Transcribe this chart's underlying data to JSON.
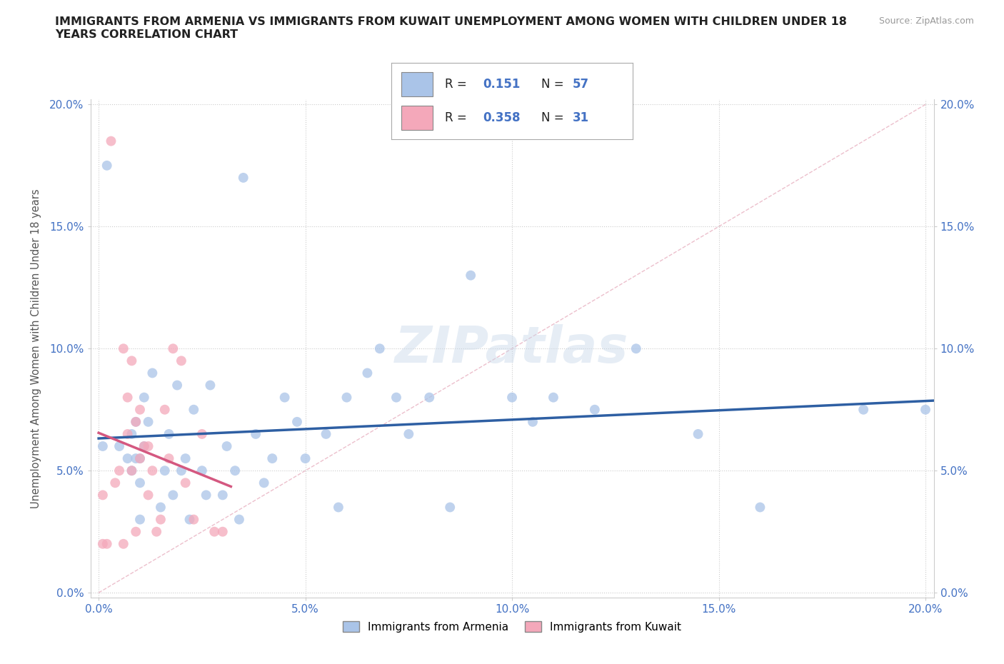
{
  "title": "IMMIGRANTS FROM ARMENIA VS IMMIGRANTS FROM KUWAIT UNEMPLOYMENT AMONG WOMEN WITH CHILDREN UNDER 18\nYEARS CORRELATION CHART",
  "source": "Source: ZipAtlas.com",
  "ylabel": "Unemployment Among Women with Children Under 18 years",
  "xlabel": "",
  "xlim": [
    -0.002,
    0.202
  ],
  "ylim": [
    -0.002,
    0.202
  ],
  "yticks": [
    0.0,
    0.05,
    0.1,
    0.15,
    0.2
  ],
  "xticks": [
    0.0,
    0.05,
    0.1,
    0.15,
    0.2
  ],
  "xtick_labels": [
    "0.0%",
    "5.0%",
    "10.0%",
    "15.0%",
    "20.0%"
  ],
  "ytick_labels": [
    "0.0%",
    "5.0%",
    "10.0%",
    "15.0%",
    "20.0%"
  ],
  "armenia_color": "#aac4e8",
  "kuwait_color": "#f4a8ba",
  "armenia_R": 0.151,
  "armenia_N": 57,
  "kuwait_R": 0.358,
  "kuwait_N": 31,
  "regression_armenia_color": "#2e5fa3",
  "regression_kuwait_color": "#d45880",
  "diagonal_color": "#d0a0b0",
  "watermark": "ZIPatlas",
  "legend_bottom_armenia": "Immigrants from Armenia",
  "legend_bottom_kuwait": "Immigrants from Kuwait",
  "armenia_x": [
    0.001,
    0.002,
    0.005,
    0.007,
    0.008,
    0.008,
    0.009,
    0.009,
    0.01,
    0.01,
    0.01,
    0.011,
    0.011,
    0.012,
    0.013,
    0.015,
    0.016,
    0.017,
    0.018,
    0.019,
    0.02,
    0.021,
    0.022,
    0.023,
    0.025,
    0.026,
    0.027,
    0.03,
    0.031,
    0.033,
    0.034,
    0.035,
    0.038,
    0.04,
    0.042,
    0.045,
    0.048,
    0.05,
    0.055,
    0.058,
    0.06,
    0.065,
    0.068,
    0.072,
    0.075,
    0.08,
    0.085,
    0.09,
    0.1,
    0.105,
    0.11,
    0.12,
    0.13,
    0.145,
    0.16,
    0.185,
    0.2
  ],
  "armenia_y": [
    0.06,
    0.175,
    0.06,
    0.055,
    0.05,
    0.065,
    0.055,
    0.07,
    0.03,
    0.045,
    0.055,
    0.06,
    0.08,
    0.07,
    0.09,
    0.035,
    0.05,
    0.065,
    0.04,
    0.085,
    0.05,
    0.055,
    0.03,
    0.075,
    0.05,
    0.04,
    0.085,
    0.04,
    0.06,
    0.05,
    0.03,
    0.17,
    0.065,
    0.045,
    0.055,
    0.08,
    0.07,
    0.055,
    0.065,
    0.035,
    0.08,
    0.09,
    0.1,
    0.08,
    0.065,
    0.08,
    0.035,
    0.13,
    0.08,
    0.07,
    0.08,
    0.075,
    0.1,
    0.065,
    0.035,
    0.075,
    0.075
  ],
  "kuwait_x": [
    0.001,
    0.001,
    0.002,
    0.003,
    0.004,
    0.005,
    0.006,
    0.006,
    0.007,
    0.007,
    0.008,
    0.008,
    0.009,
    0.009,
    0.01,
    0.01,
    0.011,
    0.012,
    0.012,
    0.013,
    0.014,
    0.015,
    0.016,
    0.017,
    0.018,
    0.02,
    0.021,
    0.023,
    0.025,
    0.028,
    0.03
  ],
  "kuwait_y": [
    0.02,
    0.04,
    0.02,
    0.185,
    0.045,
    0.05,
    0.02,
    0.1,
    0.065,
    0.08,
    0.05,
    0.095,
    0.025,
    0.07,
    0.055,
    0.075,
    0.06,
    0.04,
    0.06,
    0.05,
    0.025,
    0.03,
    0.075,
    0.055,
    0.1,
    0.095,
    0.045,
    0.03,
    0.065,
    0.025,
    0.025
  ]
}
